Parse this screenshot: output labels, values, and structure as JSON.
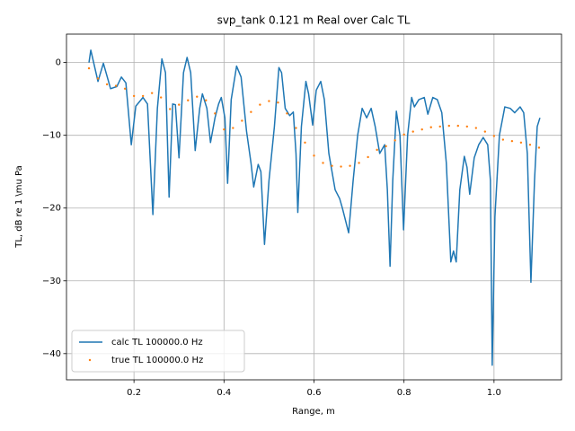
{
  "chart_data": {
    "type": "line",
    "title": "svp_tank 0.121 m Real over Calc TL",
    "xlabel": "Range, m",
    "ylabel": "TL, dB re 1 \\mu Pa",
    "xlim": [
      0.05,
      1.15
    ],
    "ylim": [
      -43.6,
      3.9
    ],
    "xticks": [
      0.2,
      0.4,
      0.6,
      0.8,
      {
        "value": 1,
        "label": "1.0"
      }
    ],
    "yticks": [
      {
        "value": 0,
        "label": "0"
      },
      {
        "value": -10,
        "label": "−10"
      },
      {
        "value": -20,
        "label": "−20"
      },
      {
        "value": -30,
        "label": "−30"
      },
      {
        "value": -40,
        "label": "−40"
      }
    ],
    "grid": true,
    "legend": "lower left",
    "series": [
      {
        "name": "calc TL 100000.0 Hz",
        "color": "#1f77b4",
        "style": "solid",
        "x": [
          0.1,
          0.104,
          0.12,
          0.132,
          0.148,
          0.162,
          0.172,
          0.182,
          0.194,
          0.204,
          0.22,
          0.23,
          0.242,
          0.252,
          0.262,
          0.27,
          0.278,
          0.286,
          0.292,
          0.3,
          0.31,
          0.318,
          0.326,
          0.336,
          0.346,
          0.352,
          0.362,
          0.37,
          0.38,
          0.388,
          0.394,
          0.402,
          0.408,
          0.416,
          0.428,
          0.438,
          0.45,
          0.46,
          0.466,
          0.476,
          0.482,
          0.49,
          0.5,
          0.512,
          0.522,
          0.528,
          0.536,
          0.546,
          0.554,
          0.56,
          0.564,
          0.572,
          0.582,
          0.588,
          0.597,
          0.605,
          0.615,
          0.623,
          0.633,
          0.647,
          0.657,
          0.663,
          0.677,
          0.687,
          0.697,
          0.707,
          0.717,
          0.727,
          0.736,
          0.746,
          0.757,
          0.763,
          0.769,
          0.775,
          0.783,
          0.791,
          0.799,
          0.808,
          0.817,
          0.823,
          0.833,
          0.845,
          0.853,
          0.864,
          0.874,
          0.884,
          0.894,
          0.904,
          0.91,
          0.916,
          0.924,
          0.934,
          0.94,
          0.946,
          0.956,
          0.966,
          0.976,
          0.986,
          0.992,
          0.996,
          1.002,
          1.012,
          1.024,
          1.036,
          1.046,
          1.058,
          1.066,
          1.074,
          1.082,
          1.09,
          1.096,
          1.102
        ],
        "values": [
          0,
          1.7,
          -2.6,
          -0.1,
          -3.6,
          -3.3,
          -2,
          -2.8,
          -11.3,
          -6,
          -4.8,
          -5.7,
          -20.9,
          -6.3,
          0.5,
          -1.4,
          -18.5,
          -5.7,
          -5.8,
          -13.1,
          -1.4,
          0.7,
          -1.4,
          -12.1,
          -6.3,
          -4.3,
          -6.3,
          -11,
          -7.6,
          -5.7,
          -4.8,
          -7.6,
          -16.6,
          -5.1,
          -0.5,
          -2,
          -9.4,
          -13.8,
          -17.1,
          -14,
          -15,
          -25,
          -16.2,
          -8.8,
          -0.7,
          -1.4,
          -6.3,
          -7.3,
          -6.8,
          -12.5,
          -20.6,
          -8.8,
          -2.6,
          -4.3,
          -8.6,
          -3.8,
          -2.6,
          -5.1,
          -12.5,
          -17.5,
          -18.7,
          -20,
          -23.4,
          -16.2,
          -10,
          -6.3,
          -7.6,
          -6.3,
          -8.8,
          -12.5,
          -11.3,
          -17.5,
          -28,
          -16.2,
          -6.7,
          -10,
          -23,
          -10,
          -4.8,
          -6.1,
          -5.1,
          -4.8,
          -7.1,
          -4.8,
          -5.1,
          -6.9,
          -13.8,
          -27.4,
          -25.9,
          -27.4,
          -17.5,
          -12.9,
          -14.4,
          -18.1,
          -13.1,
          -11.3,
          -10.3,
          -11.3,
          -16.2,
          -41.6,
          -21.2,
          -10,
          -6.1,
          -6.3,
          -6.9,
          -6.1,
          -6.9,
          -12.5,
          -30.2,
          -16.2,
          -8.8,
          -7.6
        ]
      },
      {
        "name": "true TL 100000.0 Hz",
        "color": "#ff7f0e",
        "style": "dotted",
        "x": [
          0.1,
          0.12,
          0.14,
          0.16,
          0.18,
          0.2,
          0.22,
          0.24,
          0.26,
          0.28,
          0.3,
          0.32,
          0.34,
          0.36,
          0.38,
          0.4,
          0.42,
          0.44,
          0.46,
          0.48,
          0.5,
          0.52,
          0.54,
          0.56,
          0.58,
          0.6,
          0.62,
          0.64,
          0.66,
          0.68,
          0.7,
          0.72,
          0.74,
          0.76,
          0.78,
          0.8,
          0.82,
          0.84,
          0.86,
          0.88,
          0.9,
          0.92,
          0.94,
          0.96,
          0.98,
          1.0,
          1.02,
          1.04,
          1.06,
          1.08,
          1.1
        ],
        "values": [
          -0.8,
          -2.2,
          -3,
          -3.2,
          -3.6,
          -4.6,
          -4.6,
          -4.2,
          -4.8,
          -6.4,
          -5.8,
          -5.2,
          -4.7,
          -5.2,
          -7,
          -9.2,
          -9,
          -8,
          -6.8,
          -5.8,
          -5.3,
          -5.5,
          -7,
          -9,
          -11,
          -12.8,
          -13.8,
          -14.2,
          -14.3,
          -14.2,
          -13.8,
          -13,
          -12,
          -11.5,
          -10.7,
          -9.9,
          -9.5,
          -9.2,
          -8.9,
          -8.8,
          -8.7,
          -8.7,
          -8.8,
          -9,
          -9.5,
          -10.1,
          -10.6,
          -10.8,
          -11,
          -11.3,
          -11.7
        ]
      }
    ]
  }
}
